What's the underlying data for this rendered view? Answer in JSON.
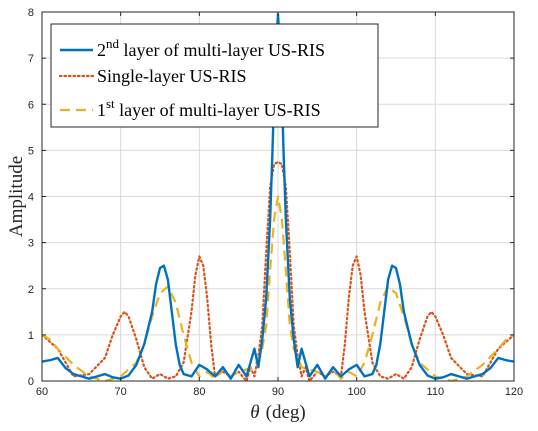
{
  "chart_data": {
    "type": "line",
    "xlabel_symbol": "θ",
    "xlabel_unit": "(deg)",
    "ylabel": "Amplitude",
    "xlim": [
      60,
      120
    ],
    "ylim": [
      0,
      8
    ],
    "xticks": [
      60,
      70,
      80,
      90,
      100,
      110,
      120
    ],
    "yticks": [
      0,
      1,
      2,
      3,
      4,
      5,
      6,
      7,
      8
    ],
    "grid": true,
    "legend_position": "top-left",
    "legend": [
      {
        "series": "s2",
        "pre": "2",
        "sup": "nd",
        "post": " layer of multi-layer US-RIS"
      },
      {
        "series": "s0",
        "pre": "Single-layer US-RIS",
        "sup": "",
        "post": ""
      },
      {
        "series": "s1",
        "pre": "1",
        "sup": "st",
        "post": " layer of multi-layer US-RIS"
      }
    ],
    "series": [
      {
        "id": "s0",
        "style": "dotted",
        "color": "#D95319",
        "x": [
          60,
          62,
          64,
          66,
          68,
          69,
          70,
          70.5,
          71,
          72,
          73,
          74,
          75,
          76,
          77,
          78,
          79,
          79.5,
          80,
          80.5,
          81,
          81.5,
          82,
          83,
          84,
          85,
          86,
          86.5,
          87,
          87.5,
          88,
          88.5,
          89,
          89.5,
          90,
          90.5,
          91,
          91.5,
          92,
          92.5,
          93,
          93.5,
          94,
          95,
          96,
          97,
          98,
          98.5,
          99,
          99.5,
          100,
          100.5,
          101,
          102,
          103,
          104,
          105,
          106,
          107,
          108,
          109,
          109.5,
          110,
          111,
          112,
          114,
          116,
          118,
          120
        ],
        "values": [
          1.0,
          0.7,
          0.1,
          0.15,
          0.5,
          1.0,
          1.4,
          1.5,
          1.4,
          0.9,
          0.3,
          0.05,
          0.15,
          0.05,
          0.1,
          0.4,
          1.5,
          2.3,
          2.7,
          2.5,
          1.8,
          0.8,
          0.1,
          0.2,
          0.1,
          0.2,
          0.0,
          0.3,
          0.1,
          0.55,
          1.2,
          2.8,
          4.2,
          4.7,
          4.75,
          4.7,
          4.2,
          2.8,
          1.2,
          0.55,
          0.1,
          0.3,
          0.0,
          0.2,
          0.1,
          0.2,
          0.1,
          0.8,
          1.8,
          2.5,
          2.7,
          2.3,
          1.5,
          0.4,
          0.1,
          0.05,
          0.15,
          0.05,
          0.3,
          0.9,
          1.4,
          1.5,
          1.4,
          1.0,
          0.5,
          0.15,
          0.1,
          0.7,
          1.0
        ]
      },
      {
        "id": "s1",
        "style": "dashed",
        "color": "#EDB120",
        "x": [
          60,
          61,
          62,
          64,
          66,
          68,
          70,
          72,
          73,
          74,
          75,
          76,
          77,
          78,
          79,
          80,
          81,
          82,
          83,
          84,
          85,
          86,
          87,
          88,
          88.5,
          89,
          89.5,
          90,
          90.5,
          91,
          91.5,
          92,
          93,
          94,
          95,
          96,
          97,
          98,
          99,
          100,
          101,
          102,
          103,
          104,
          105,
          106,
          107,
          108,
          110,
          112,
          114,
          116,
          118,
          119,
          120
        ],
        "values": [
          1.0,
          0.9,
          0.7,
          0.35,
          0.1,
          0.0,
          0.1,
          0.4,
          0.8,
          1.4,
          1.9,
          2.05,
          1.7,
          1.0,
          0.4,
          0.1,
          0.2,
          0.05,
          0.25,
          0.1,
          0.2,
          0.25,
          0.3,
          0.7,
          1.2,
          2.4,
          3.5,
          4.0,
          3.5,
          2.4,
          1.2,
          0.7,
          0.3,
          0.25,
          0.2,
          0.1,
          0.25,
          0.05,
          0.2,
          0.1,
          0.4,
          1.0,
          1.7,
          2.05,
          1.9,
          1.4,
          0.8,
          0.4,
          0.1,
          0.0,
          0.1,
          0.35,
          0.7,
          0.9,
          1.0
        ]
      },
      {
        "id": "s2",
        "style": "solid",
        "color": "#0072BD",
        "x": [
          60,
          61,
          62,
          63,
          64,
          65,
          66,
          67,
          68,
          69,
          70,
          71,
          72,
          73,
          74,
          74.5,
          75,
          75.5,
          76,
          76.5,
          77,
          77.5,
          78,
          79,
          80,
          81,
          82,
          83,
          84,
          85,
          86,
          86.5,
          87,
          87.5,
          88,
          88.5,
          89,
          89.3,
          89.6,
          90,
          90.4,
          90.7,
          91,
          91.5,
          92,
          92.5,
          93,
          93.5,
          94,
          95,
          96,
          97,
          98,
          99,
          100,
          101,
          102,
          102.5,
          103,
          103.5,
          104,
          104.5,
          105,
          105.5,
          106,
          107,
          108,
          109,
          110,
          111,
          112,
          113,
          114,
          115,
          116,
          117,
          118,
          119,
          120
        ],
        "values": [
          0.42,
          0.45,
          0.5,
          0.28,
          0.15,
          0.1,
          0.05,
          0.1,
          0.15,
          0.08,
          0.05,
          0.12,
          0.35,
          0.8,
          1.5,
          2.1,
          2.45,
          2.5,
          2.2,
          1.5,
          0.8,
          0.35,
          0.15,
          0.1,
          0.35,
          0.25,
          0.1,
          0.3,
          0.05,
          0.35,
          0.1,
          0.4,
          0.7,
          0.3,
          0.9,
          1.8,
          3.5,
          5.0,
          6.8,
          7.95,
          6.8,
          5.0,
          3.5,
          1.8,
          0.9,
          0.3,
          0.7,
          0.4,
          0.1,
          0.35,
          0.05,
          0.3,
          0.1,
          0.25,
          0.35,
          0.1,
          0.15,
          0.35,
          0.8,
          1.5,
          2.2,
          2.5,
          2.45,
          2.1,
          1.5,
          0.8,
          0.35,
          0.12,
          0.05,
          0.08,
          0.15,
          0.1,
          0.05,
          0.1,
          0.15,
          0.28,
          0.5,
          0.45,
          0.42
        ]
      }
    ]
  }
}
